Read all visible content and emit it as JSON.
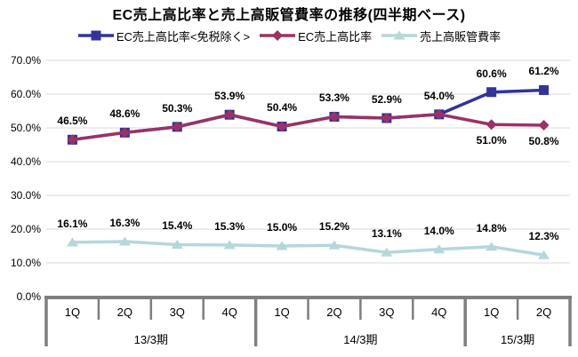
{
  "chart_data": {
    "type": "line",
    "title": "EC売上高比率と売上高販管費率の推移(四半期ベース)",
    "categories": [
      "1Q",
      "2Q",
      "3Q",
      "4Q",
      "1Q",
      "2Q",
      "3Q",
      "4Q",
      "1Q",
      "2Q"
    ],
    "period_groups": [
      {
        "label": "13/3期",
        "span": 4
      },
      {
        "label": "14/3期",
        "span": 4
      },
      {
        "label": "15/3期",
        "span": 2
      }
    ],
    "series": [
      {
        "name": "EC売上高比率<免税除く>",
        "color": "#333399",
        "marker": "square",
        "values": [
          46.5,
          48.6,
          50.3,
          53.9,
          50.4,
          53.3,
          52.9,
          54.0,
          60.6,
          61.2
        ],
        "data_labels": [
          null,
          null,
          null,
          null,
          null,
          null,
          null,
          null,
          "above",
          "above"
        ]
      },
      {
        "name": "EC売上高比率",
        "color": "#993366",
        "marker": "diamond",
        "values": [
          46.5,
          48.6,
          50.3,
          53.9,
          50.4,
          53.3,
          52.9,
          54.0,
          51.0,
          50.8
        ],
        "data_labels": [
          "above",
          "above",
          "above",
          "above",
          "above",
          "above",
          "above",
          "above",
          "below",
          "below"
        ]
      },
      {
        "name": "売上高販管費率",
        "color": "#B5D7DB",
        "marker": "triangle",
        "values": [
          16.1,
          16.3,
          15.4,
          15.3,
          15.0,
          15.2,
          13.1,
          14.0,
          14.8,
          12.3
        ],
        "data_labels": [
          "above",
          "above",
          "above",
          "above",
          "above",
          "above",
          "above",
          "above",
          "above",
          "above"
        ]
      }
    ],
    "ylim": [
      0,
      70
    ],
    "ytick_step": 10,
    "ytick_labels": [
      "0.0%",
      "10.0%",
      "20.0%",
      "30.0%",
      "40.0%",
      "50.0%",
      "60.0%",
      "70.0%"
    ],
    "grid": true,
    "legend_position": "top",
    "gridline_color": "#D9D9D9",
    "axis_color": "#7F7F7F"
  }
}
